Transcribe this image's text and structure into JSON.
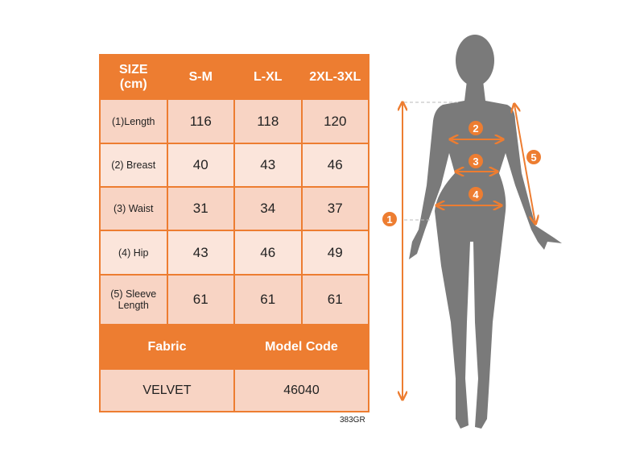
{
  "table": {
    "header": [
      "SIZE\n(cm)",
      "S-M",
      "L-XL",
      "2XL-3XL"
    ],
    "header_top": "SIZE",
    "header_unit": "(cm)",
    "rows": [
      {
        "label": "(1)Length",
        "values": [
          "116",
          "118",
          "120"
        ]
      },
      {
        "label": "(2) Breast",
        "values": [
          "40",
          "43",
          "46"
        ]
      },
      {
        "label": "(3) Waist",
        "values": [
          "31",
          "34",
          "37"
        ]
      },
      {
        "label": "(4) Hip",
        "values": [
          "43",
          "46",
          "49"
        ]
      },
      {
        "label_line1": "(5) Sleeve",
        "label_line2": "Length",
        "values": [
          "61",
          "61",
          "61"
        ]
      }
    ],
    "footer_headers": [
      "Fabric",
      "Model Code"
    ],
    "footer_values": [
      "VELVET",
      "46040"
    ]
  },
  "product_code": "383GR",
  "diagram": {
    "markers": [
      "1",
      "2",
      "3",
      "4",
      "5"
    ],
    "accent_color": "#ED7D31",
    "silhouette_color": "#7A7A7A"
  }
}
